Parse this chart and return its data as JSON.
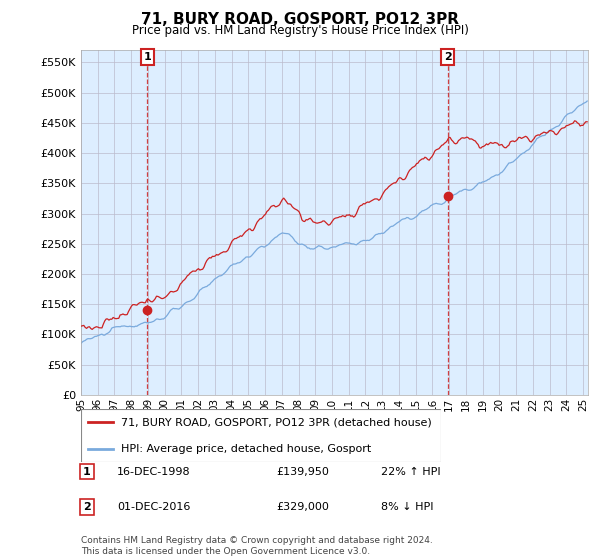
{
  "title": "71, BURY ROAD, GOSPORT, PO12 3PR",
  "subtitle": "Price paid vs. HM Land Registry's House Price Index (HPI)",
  "ylim": [
    0,
    570000
  ],
  "yticks": [
    0,
    50000,
    100000,
    150000,
    200000,
    250000,
    300000,
    350000,
    400000,
    450000,
    500000,
    550000
  ],
  "xlim_start": 1995.0,
  "xlim_end": 2025.3,
  "sale1_date": 1998.96,
  "sale1_price": 139950,
  "sale2_date": 2016.92,
  "sale2_price": 329000,
  "property_color": "#cc2222",
  "hpi_color": "#7aaadd",
  "chart_bg": "#ddeeff",
  "legend_label1": "71, BURY ROAD, GOSPORT, PO12 3PR (detached house)",
  "legend_label2": "HPI: Average price, detached house, Gosport",
  "footnote": "Contains HM Land Registry data © Crown copyright and database right 2024.\nThis data is licensed under the Open Government Licence v3.0.",
  "table_row1": [
    "1",
    "16-DEC-1998",
    "£139,950",
    "22% ↑ HPI"
  ],
  "table_row2": [
    "2",
    "01-DEC-2016",
    "£329,000",
    "8% ↓ HPI"
  ],
  "background_color": "#ffffff",
  "grid_color": "#bbbbcc"
}
